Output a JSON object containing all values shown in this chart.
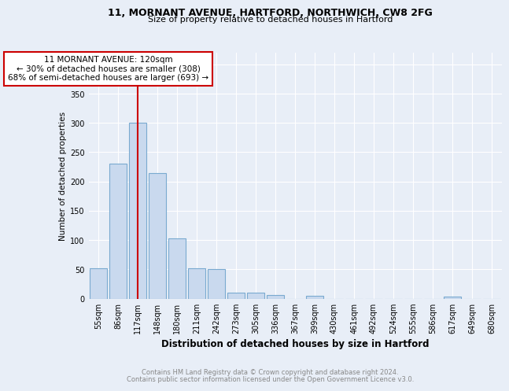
{
  "title1": "11, MORNANT AVENUE, HARTFORD, NORTHWICH, CW8 2FG",
  "title2": "Size of property relative to detached houses in Hartford",
  "xlabel": "Distribution of detached houses by size in Hartford",
  "ylabel": "Number of detached properties",
  "categories": [
    "55sqm",
    "86sqm",
    "117sqm",
    "148sqm",
    "180sqm",
    "211sqm",
    "242sqm",
    "273sqm",
    "305sqm",
    "336sqm",
    "367sqm",
    "399sqm",
    "430sqm",
    "461sqm",
    "492sqm",
    "524sqm",
    "555sqm",
    "586sqm",
    "617sqm",
    "649sqm",
    "680sqm"
  ],
  "values": [
    52,
    230,
    300,
    215,
    103,
    52,
    50,
    10,
    10,
    6,
    0,
    5,
    0,
    0,
    0,
    0,
    0,
    0,
    3,
    0,
    0
  ],
  "bar_color": "#c9d9ee",
  "bar_edge_color": "#7aaad0",
  "vline_x_index": 2,
  "vline_color": "#cc0000",
  "annotation_text": "11 MORNANT AVENUE: 120sqm\n← 30% of detached houses are smaller (308)\n68% of semi-detached houses are larger (693) →",
  "annotation_box_color": "white",
  "annotation_box_edge_color": "#cc0000",
  "ylim": [
    0,
    420
  ],
  "yticks": [
    0,
    50,
    100,
    150,
    200,
    250,
    300,
    350,
    400
  ],
  "footer1": "Contains HM Land Registry data © Crown copyright and database right 2024.",
  "footer2": "Contains public sector information licensed under the Open Government Licence v3.0.",
  "bg_color": "#e8eef7",
  "plot_bg_color": "#e8eef7",
  "grid_color": "#ffffff",
  "title1_fontsize": 9.0,
  "title2_fontsize": 8.0,
  "xlabel_fontsize": 8.5,
  "ylabel_fontsize": 7.5,
  "tick_fontsize": 7.0,
  "annot_fontsize": 7.5,
  "footer_fontsize": 6.0
}
